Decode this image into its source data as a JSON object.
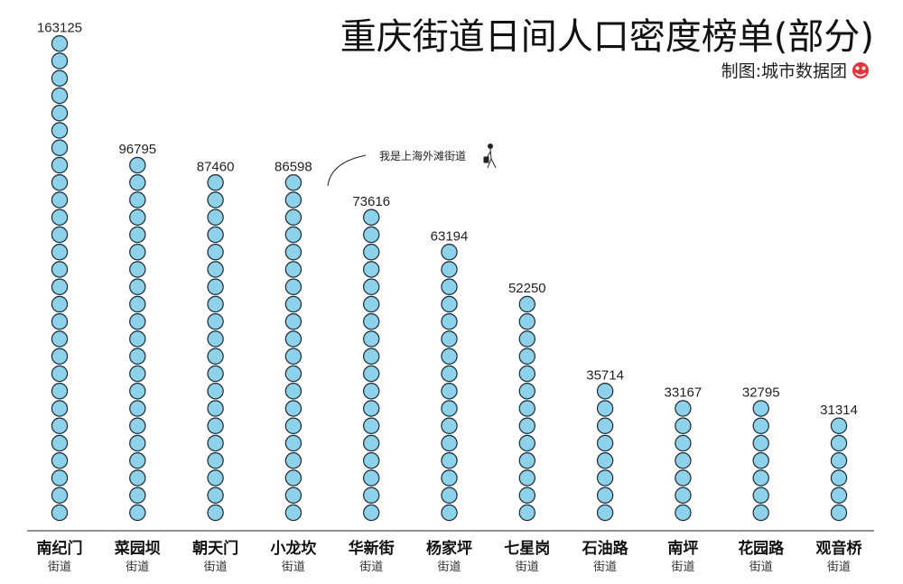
{
  "header": {
    "title": "重庆街道日间人口密度榜单(部分)",
    "credit": "制图:城市数据团"
  },
  "annotation": {
    "text": "我是上海外滩街道"
  },
  "colors": {
    "dot_fill": "#8ed1ea",
    "dot_stroke": "#1b2a33",
    "axis": "#555555",
    "logo": "#e8323c"
  },
  "chart_data": {
    "type": "bar",
    "title": "重庆街道日间人口密度榜单(部分)",
    "categories": [
      "南纪门",
      "菜园坝",
      "朝天门",
      "小龙坎",
      "华新街",
      "杨家坪",
      "七星岗",
      "石油路",
      "南坪",
      "花园路",
      "观音桥"
    ],
    "category_suffix": "街道",
    "values": [
      163125,
      96795,
      87460,
      86598,
      73616,
      63194,
      52250,
      35714,
      33167,
      32795,
      31314
    ],
    "value_labels": [
      "163125",
      "96795",
      "87460",
      "86598",
      "73616",
      "63194",
      "52250",
      "35714",
      "33167",
      "32795",
      "31314"
    ],
    "dots": [
      28,
      21,
      20,
      20,
      18,
      16,
      13,
      8,
      7,
      7,
      6
    ],
    "xlabel": "",
    "ylabel": "",
    "grid": false
  }
}
